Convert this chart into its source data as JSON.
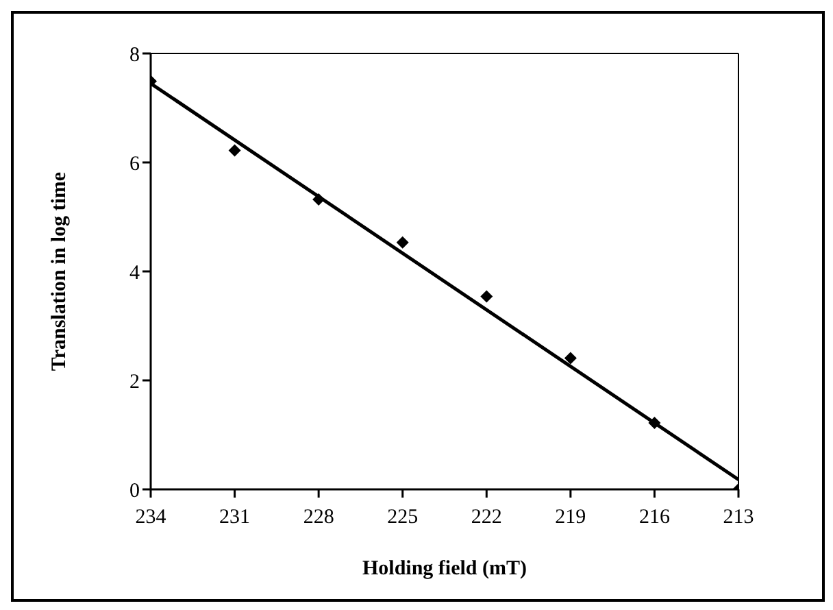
{
  "chart_data": {
    "type": "scatter",
    "xlabel": "Holding field (mT)",
    "ylabel": "Translation in log time",
    "x": [
      234,
      231,
      228,
      225,
      222,
      219,
      216,
      213
    ],
    "series": [
      {
        "color": "#000000",
        "marker": "diamond",
        "values": [
          7.49,
          6.22,
          5.32,
          4.53,
          3.54,
          2.41,
          1.22,
          0
        ]
      },
      {
        "type": "line",
        "color": "#000000",
        "marker": "none",
        "x": [
          234,
          213
        ],
        "values": [
          7.45,
          0.18
        ]
      }
    ],
    "xlim": [
      234,
      213
    ],
    "xticks": [
      234,
      231,
      228,
      225,
      222,
      219,
      216,
      213
    ],
    "ylim": [
      0,
      8
    ],
    "yticks": [
      0,
      2,
      4,
      6,
      8
    ]
  }
}
